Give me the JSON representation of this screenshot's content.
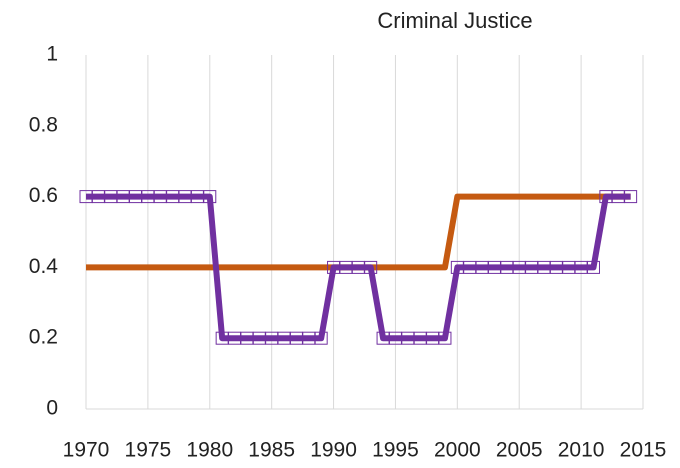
{
  "chart_data": {
    "type": "line",
    "title": "Criminal Justice",
    "x": [
      1970,
      1971,
      1972,
      1973,
      1974,
      1975,
      1976,
      1977,
      1978,
      1979,
      1980,
      1981,
      1982,
      1983,
      1984,
      1985,
      1986,
      1987,
      1988,
      1989,
      1990,
      1991,
      1992,
      1993,
      1994,
      1995,
      1996,
      1997,
      1998,
      1999,
      2000,
      2001,
      2002,
      2003,
      2004,
      2005,
      2006,
      2007,
      2008,
      2009,
      2010,
      2011,
      2012,
      2013,
      2014
    ],
    "series": [
      {
        "color": "#7030a0",
        "markers": true,
        "values": [
          0.6,
          0.6,
          0.6,
          0.6,
          0.6,
          0.6,
          0.6,
          0.6,
          0.6,
          0.6,
          0.6,
          0.2,
          0.2,
          0.2,
          0.2,
          0.2,
          0.2,
          0.2,
          0.2,
          0.2,
          0.4,
          0.4,
          0.4,
          0.4,
          0.2,
          0.2,
          0.2,
          0.2,
          0.2,
          0.2,
          0.4,
          0.4,
          0.4,
          0.4,
          0.4,
          0.4,
          0.4,
          0.4,
          0.4,
          0.4,
          0.4,
          0.4,
          0.6,
          0.6,
          0.6
        ]
      },
      {
        "color": "#c55a11",
        "markers": false,
        "values": [
          0.4,
          0.4,
          0.4,
          0.4,
          0.4,
          0.4,
          0.4,
          0.4,
          0.4,
          0.4,
          0.4,
          0.4,
          0.4,
          0.4,
          0.4,
          0.4,
          0.4,
          0.4,
          0.4,
          0.4,
          0.4,
          0.4,
          0.4,
          0.4,
          0.4,
          0.4,
          0.4,
          0.4,
          0.4,
          0.4,
          0.6,
          0.6,
          0.6,
          0.6,
          0.6,
          0.6,
          0.6,
          0.6,
          0.6,
          0.6,
          0.6,
          0.6,
          0.6,
          0.6,
          0.6
        ]
      }
    ],
    "xlim": [
      1970,
      2015
    ],
    "xticks": [
      1970,
      1975,
      1980,
      1985,
      1990,
      1995,
      2000,
      2005,
      2010,
      2015
    ],
    "ylim": [
      0,
      1
    ],
    "yticks": [
      0,
      0.2,
      0.4,
      0.6,
      0.8,
      1
    ],
    "grid": "x"
  }
}
